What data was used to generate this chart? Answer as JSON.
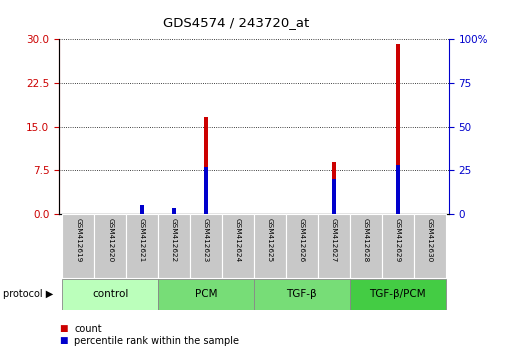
{
  "title": "GDS4574 / 243720_at",
  "samples": [
    "GSM412619",
    "GSM412620",
    "GSM412621",
    "GSM412622",
    "GSM412623",
    "GSM412624",
    "GSM412625",
    "GSM412626",
    "GSM412627",
    "GSM412628",
    "GSM412629",
    "GSM412630"
  ],
  "count_values": [
    0,
    0,
    1.5,
    0.8,
    16.7,
    0,
    0,
    0,
    9.0,
    0,
    29.2,
    0
  ],
  "percentile_values": [
    0,
    0,
    5.5,
    3.5,
    27,
    0,
    0,
    0,
    20,
    0,
    28,
    0
  ],
  "count_color": "#cc0000",
  "percentile_color": "#0000cc",
  "bar_width": 0.12,
  "ylim_left": [
    0,
    30
  ],
  "ylim_right": [
    0,
    100
  ],
  "yticks_left": [
    0,
    7.5,
    15,
    22.5,
    30
  ],
  "yticks_right": [
    0,
    25,
    50,
    75,
    100
  ],
  "groups_def": [
    {
      "label": "control",
      "indices": [
        0,
        1,
        2
      ],
      "color": "#bbffbb"
    },
    {
      "label": "PCM",
      "indices": [
        3,
        4,
        5
      ],
      "color": "#77dd77"
    },
    {
      "label": "TGF-β",
      "indices": [
        6,
        7,
        8
      ],
      "color": "#77dd77"
    },
    {
      "label": "TGF-β/PCM",
      "indices": [
        9,
        10,
        11
      ],
      "color": "#44cc44"
    }
  ],
  "protocol_label": "protocol",
  "legend_count": "count",
  "legend_percentile": "percentile rank within the sample",
  "tick_color_left": "#cc0000",
  "tick_color_right": "#0000cc"
}
